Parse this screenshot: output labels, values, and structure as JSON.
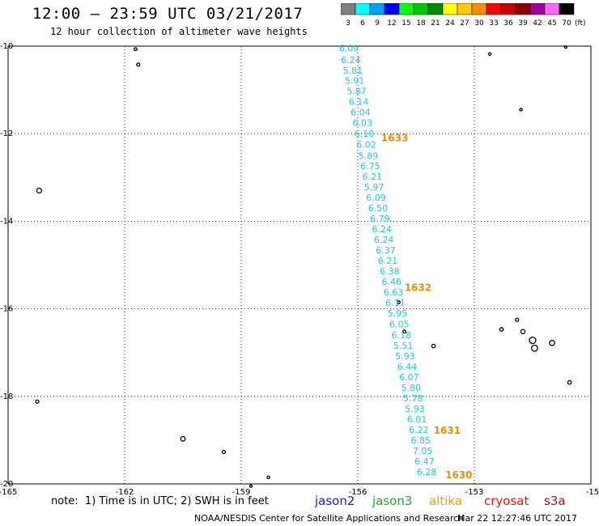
{
  "header": {
    "title": "12:00 – 23:59 UTC 03/21/2017",
    "subtitle": "12 hour collection of altimeter wave heights"
  },
  "colorbar": {
    "unit": "(ft)",
    "items": [
      {
        "label": "3",
        "color": "#7f7f7f"
      },
      {
        "label": "6",
        "color": "#00ffff"
      },
      {
        "label": "9",
        "color": "#00a0ff"
      },
      {
        "label": "12",
        "color": "#0000ff"
      },
      {
        "label": "15",
        "color": "#00ff00"
      },
      {
        "label": "18",
        "color": "#00c800"
      },
      {
        "label": "21",
        "color": "#008c00"
      },
      {
        "label": "24",
        "color": "#ffff00"
      },
      {
        "label": "27",
        "color": "#ffc800"
      },
      {
        "label": "30",
        "color": "#ff8c00"
      },
      {
        "label": "33",
        "color": "#ff0000"
      },
      {
        "label": "36",
        "color": "#c80000"
      },
      {
        "label": "39",
        "color": "#8c0000"
      },
      {
        "label": "42",
        "color": "#a000a0"
      },
      {
        "label": "45",
        "color": "#ff64ff"
      },
      {
        "label": "70",
        "color": "#000000"
      }
    ]
  },
  "axes": {
    "lon_labels": [
      "-165",
      "-162",
      "-159",
      "-156",
      "-153",
      "-15"
    ],
    "lat_labels": [
      "-10",
      "-12",
      "-14",
      "-16",
      "-18",
      "-20"
    ]
  },
  "track": {
    "color": "#22c4e0",
    "points": [
      {
        "lon": -156.23,
        "lat": -10.05,
        "value": "6.09"
      },
      {
        "lon": -156.18,
        "lat": -10.31,
        "value": "6.24"
      },
      {
        "lon": -156.13,
        "lat": -10.55,
        "value": "5.81"
      },
      {
        "lon": -156.08,
        "lat": -10.79,
        "value": "5.91"
      },
      {
        "lon": -156.03,
        "lat": -11.03,
        "value": "5.87"
      },
      {
        "lon": -155.98,
        "lat": -11.27,
        "value": "6.14"
      },
      {
        "lon": -155.93,
        "lat": -11.51,
        "value": "6.04"
      },
      {
        "lon": -155.88,
        "lat": -11.75,
        "value": "6.03"
      },
      {
        "lon": -155.83,
        "lat": -12.0,
        "value": "6.10"
      },
      {
        "lon": -155.78,
        "lat": -12.25,
        "value": "6.02"
      },
      {
        "lon": -155.73,
        "lat": -12.5,
        "value": "5.89"
      },
      {
        "lon": -155.68,
        "lat": -12.74,
        "value": "6.75"
      },
      {
        "lon": -155.63,
        "lat": -12.98,
        "value": "6.21"
      },
      {
        "lon": -155.58,
        "lat": -13.22,
        "value": "5.97"
      },
      {
        "lon": -155.53,
        "lat": -13.46,
        "value": "6.09"
      },
      {
        "lon": -155.48,
        "lat": -13.7,
        "value": "6.50"
      },
      {
        "lon": -155.43,
        "lat": -13.94,
        "value": "6.79"
      },
      {
        "lon": -155.38,
        "lat": -14.18,
        "value": "6.24"
      },
      {
        "lon": -155.33,
        "lat": -14.42,
        "value": "6.24"
      },
      {
        "lon": -155.28,
        "lat": -14.66,
        "value": "6.37"
      },
      {
        "lon": -155.23,
        "lat": -14.9,
        "value": "6.21"
      },
      {
        "lon": -155.18,
        "lat": -15.14,
        "value": "6.38"
      },
      {
        "lon": -155.13,
        "lat": -15.38,
        "value": "6.46"
      },
      {
        "lon": -155.08,
        "lat": -15.62,
        "value": "6.63"
      },
      {
        "lon": -155.03,
        "lat": -15.86,
        "value": "6.11"
      },
      {
        "lon": -154.98,
        "lat": -16.1,
        "value": "5.95"
      },
      {
        "lon": -154.93,
        "lat": -16.35,
        "value": "6.05"
      },
      {
        "lon": -154.88,
        "lat": -16.6,
        "value": "6.18"
      },
      {
        "lon": -154.83,
        "lat": -16.84,
        "value": "5.51"
      },
      {
        "lon": -154.78,
        "lat": -17.08,
        "value": "5.93"
      },
      {
        "lon": -154.73,
        "lat": -17.32,
        "value": "6.44"
      },
      {
        "lon": -154.68,
        "lat": -17.56,
        "value": "6.07"
      },
      {
        "lon": -154.63,
        "lat": -17.8,
        "value": "5.80"
      },
      {
        "lon": -154.58,
        "lat": -18.04,
        "value": "5.78"
      },
      {
        "lon": -154.53,
        "lat": -18.28,
        "value": "5.93"
      },
      {
        "lon": -154.48,
        "lat": -18.52,
        "value": "6.01"
      },
      {
        "lon": -154.43,
        "lat": -18.76,
        "value": "6.22"
      },
      {
        "lon": -154.38,
        "lat": -19.0,
        "value": "6.85"
      },
      {
        "lon": -154.33,
        "lat": -19.24,
        "value": "7.05"
      },
      {
        "lon": -154.28,
        "lat": -19.48,
        "value": "6.47"
      },
      {
        "lon": -154.23,
        "lat": -19.72,
        "value": "6.28"
      }
    ]
  },
  "time_labels": {
    "color": "#f08c00",
    "items": [
      {
        "lon": -155.05,
        "lat": -12.1,
        "text": "1633"
      },
      {
        "lon": -154.45,
        "lat": -15.52,
        "text": "1632"
      },
      {
        "lon": -153.7,
        "lat": -18.78,
        "text": "1631"
      },
      {
        "lon": -153.4,
        "lat": -19.8,
        "text": "1630"
      }
    ]
  },
  "islands": [
    {
      "lon": -161.72,
      "lat": -10.07,
      "r": 1.8
    },
    {
      "lon": -161.65,
      "lat": -10.42,
      "r": 2.0
    },
    {
      "lon": -164.2,
      "lat": -13.3,
      "r": 3.0
    },
    {
      "lon": -164.25,
      "lat": -18.12,
      "r": 2.0
    },
    {
      "lon": -160.5,
      "lat": -18.97,
      "r": 2.8
    },
    {
      "lon": -159.45,
      "lat": -19.27,
      "r": 2.0
    },
    {
      "lon": -158.3,
      "lat": -19.85,
      "r": 1.6
    },
    {
      "lon": -158.75,
      "lat": -20.05,
      "r": 1.5
    },
    {
      "lon": -154.95,
      "lat": -15.85,
      "r": 1.8
    },
    {
      "lon": -154.8,
      "lat": -16.52,
      "r": 1.8
    },
    {
      "lon": -154.05,
      "lat": -16.85,
      "r": 2.2
    },
    {
      "lon": -152.6,
      "lat": -10.18,
      "r": 1.6
    },
    {
      "lon": -151.8,
      "lat": -11.45,
      "r": 1.6
    },
    {
      "lon": -151.9,
      "lat": -16.25,
      "r": 2.0
    },
    {
      "lon": -152.3,
      "lat": -16.47,
      "r": 2.2
    },
    {
      "lon": -151.75,
      "lat": -16.52,
      "r": 2.6
    },
    {
      "lon": -151.5,
      "lat": -16.72,
      "r": 4.0
    },
    {
      "lon": -151.45,
      "lat": -16.9,
      "r": 3.8
    },
    {
      "lon": -151.0,
      "lat": -16.78,
      "r": 3.2
    },
    {
      "lon": -150.55,
      "lat": -17.68,
      "r": 2.2
    },
    {
      "lon": -150.65,
      "lat": -10.02,
      "r": 1.5
    }
  ],
  "note": "note:  1) Time is in UTC; 2) SWH is in feet",
  "satellites": [
    {
      "name": "jason2",
      "color": "#1a1aff"
    },
    {
      "name": "jason3",
      "color": "#22aa22"
    },
    {
      "name": "altika",
      "color": "#ff9900"
    },
    {
      "name": "cryosat",
      "color": "#ee1111"
    },
    {
      "name": "s3a",
      "color": "#aa1111"
    }
  ],
  "footer": {
    "credit": "NOAA/NESDIS Center for Satellite Applications and Research",
    "timestamp": "Mar 22 12:27:46 UTC 2017"
  }
}
